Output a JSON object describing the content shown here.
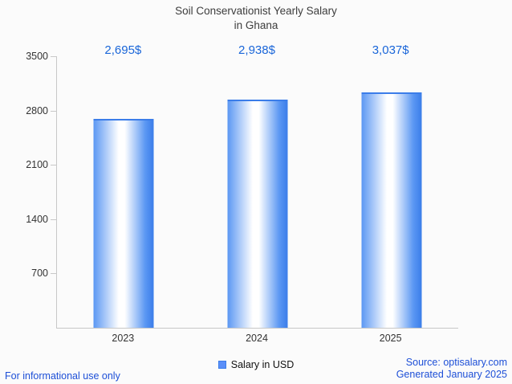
{
  "chart_data": {
    "type": "bar",
    "title_line1": "Soil Conservationist Yearly Salary",
    "title_line2": "in Ghana",
    "categories": [
      "2023",
      "2024",
      "2025"
    ],
    "values": [
      2695,
      2938,
      3037
    ],
    "value_labels": [
      "2,695$",
      "2,938$",
      "3,037$"
    ],
    "ylim": [
      0,
      3500
    ],
    "yticks": [
      3500,
      2800,
      2100,
      1400,
      700
    ],
    "grid": "off",
    "legend_position": "bottom-center",
    "legend_label": "Salary in USD",
    "xlabel": "",
    "ylabel": ""
  },
  "footer": {
    "left": "For informational use only",
    "source": "Source: optisalary.com",
    "generated": "Generated January 2025"
  },
  "colors": {
    "title_text": "#3d3d3d",
    "value_label": "#1a66d9",
    "footer_text": "#1d4fd7",
    "axis": "#c8c8c8",
    "bar_edge": "#5b97f3",
    "bar_edge_dark": "#3b7de9",
    "legend_marker": "#5b8ff9"
  }
}
